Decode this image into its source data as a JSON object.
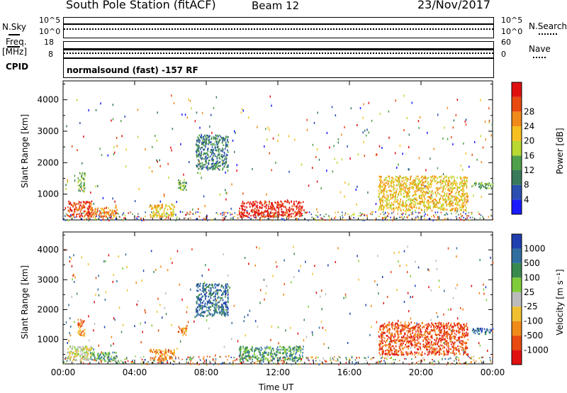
{
  "header": {
    "title": "South Pole Station (fitACF)",
    "beam": "Beam 12",
    "date": "23/Nov/2017"
  },
  "top_panels": {
    "nsky_label": "N.Sky",
    "nsky_ticks": [
      "10^5",
      "10^0"
    ],
    "nsearch_label": "N.Search",
    "nsearch_ticks": [
      "10^5",
      "10^0"
    ],
    "freq_label_1": "Freq.",
    "freq_label_2": "[MHz]",
    "freq_ticks": [
      "18",
      "8"
    ],
    "nave_label": "Nave",
    "nave_ticks": [
      "60",
      "0"
    ],
    "cpid_label": "CPID",
    "cpid_text": "normalsound (fast) -157 RF"
  },
  "chart_data": [
    {
      "type": "heatmap",
      "panel": "power",
      "ylabel": "Slant Range [km]",
      "y_ticks": [
        1000,
        2000,
        3000,
        4000
      ],
      "ylim": [
        180,
        4600
      ],
      "x_ticks": [
        "00:00",
        "04:00",
        "08:00",
        "12:00",
        "16:00",
        "20:00",
        "00:00"
      ],
      "xlim_hours": [
        0,
        24
      ],
      "colorbar": {
        "label": "Power [dB]",
        "tick_labels": [
          "4",
          "8",
          "12",
          "16",
          "20",
          "24",
          "28"
        ],
        "colors": [
          "#1a1aff",
          "#2a4fb0",
          "#3a7a5a",
          "#4fa04a",
          "#b8d832",
          "#f6c020",
          "#f08a18",
          "#e84a10",
          "#e01010"
        ]
      },
      "regions": [
        {
          "t": [
            0.2,
            1.6
          ],
          "r": [
            300,
            800
          ],
          "level": 7
        },
        {
          "t": [
            0.8,
            1.2
          ],
          "r": [
            1100,
            1700
          ],
          "level": 3
        },
        {
          "t": [
            1.5,
            3.0
          ],
          "r": [
            300,
            600
          ],
          "level": 6
        },
        {
          "t": [
            4.8,
            6.2
          ],
          "r": [
            300,
            700
          ],
          "level": 5
        },
        {
          "t": [
            6.4,
            6.9
          ],
          "r": [
            1150,
            1500
          ],
          "level": 3
        },
        {
          "t": [
            7.4,
            9.2
          ],
          "r": [
            1800,
            2900
          ],
          "level": 2
        },
        {
          "t": [
            9.8,
            13.4
          ],
          "r": [
            300,
            800
          ],
          "level": 8
        },
        {
          "t": [
            17.6,
            22.6
          ],
          "r": [
            500,
            1600
          ],
          "level": 5
        },
        {
          "t": [
            22.8,
            24.0
          ],
          "r": [
            1200,
            1400
          ],
          "level": 3
        }
      ]
    },
    {
      "type": "heatmap",
      "panel": "velocity",
      "ylabel": "Slant Range [km]",
      "y_ticks": [
        1000,
        2000,
        3000,
        4000
      ],
      "ylim": [
        180,
        4600
      ],
      "x_ticks": [
        "00:00",
        "04:00",
        "08:00",
        "12:00",
        "16:00",
        "20:00",
        "00:00"
      ],
      "xlim_hours": [
        0,
        24
      ],
      "xlabel": "Time UT",
      "colorbar": {
        "label": "Velocity [m s⁻¹]",
        "tick_labels": [
          "1000",
          "500",
          "100",
          "25",
          "-25",
          "-100",
          "-500",
          "-1000"
        ],
        "colors": [
          "#1f3fb0",
          "#2f6fa0",
          "#3a8a50",
          "#7fcc3a",
          "#bbbbbb",
          "#f0c030",
          "#f08a18",
          "#e84a10",
          "#e01010"
        ]
      },
      "regions": [
        {
          "t": [
            0.2,
            1.6
          ],
          "r": [
            300,
            800
          ],
          "level": 4
        },
        {
          "t": [
            0.8,
            1.2
          ],
          "r": [
            1100,
            1700
          ],
          "level": 6
        },
        {
          "t": [
            1.5,
            3.0
          ],
          "r": [
            300,
            600
          ],
          "level": 2
        },
        {
          "t": [
            4.8,
            6.2
          ],
          "r": [
            300,
            700
          ],
          "level": 6
        },
        {
          "t": [
            6.4,
            6.9
          ],
          "r": [
            1150,
            1500
          ],
          "level": 6
        },
        {
          "t": [
            7.4,
            9.2
          ],
          "r": [
            1800,
            2900
          ],
          "level": 1
        },
        {
          "t": [
            9.8,
            13.4
          ],
          "r": [
            300,
            800
          ],
          "level": 2
        },
        {
          "t": [
            17.6,
            22.6
          ],
          "r": [
            500,
            1600
          ],
          "level": 7
        },
        {
          "t": [
            22.8,
            24.0
          ],
          "r": [
            1200,
            1400
          ],
          "level": 1
        }
      ]
    }
  ]
}
